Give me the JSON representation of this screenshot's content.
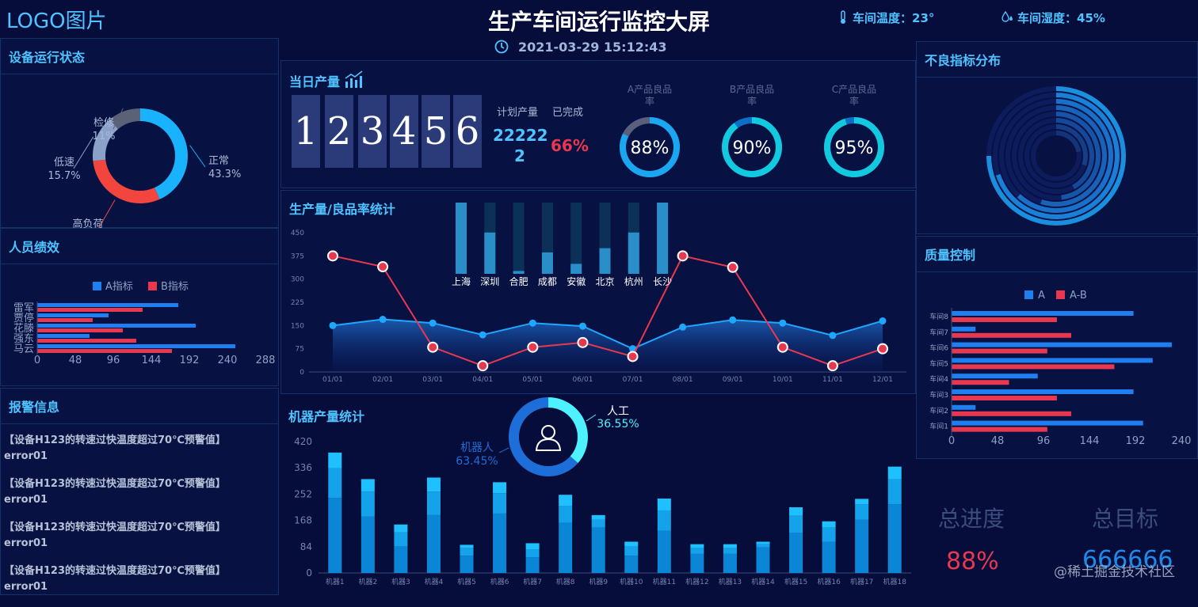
{
  "header": {
    "logo": "LOGO图片",
    "title": "生产车间运行监控大屏",
    "datetime": "2021-03-29 15:12:43",
    "temperature": "车间温度：23°",
    "humidity": "车间湿度：45%"
  },
  "panels": {
    "device_status": "设备运行状态",
    "staff": "人员绩效",
    "alarm": "报警信息",
    "daily_output": "当日产量",
    "output_yield": "生产量/良品率统计",
    "machine_output": "机器产量统计",
    "defect": "不良指标分布",
    "quality": "质量控制"
  },
  "device_status": {
    "slices": [
      {
        "name": "正常",
        "value": 43.3,
        "label": "43.3%",
        "color": "#19b2ff"
      },
      {
        "name": "高负荷",
        "value": 30,
        "label": "30%",
        "color": "#f2453d"
      },
      {
        "name": "低速",
        "value": 15.7,
        "label": "15.7%",
        "color": "#8aa2c8"
      },
      {
        "name": "检修",
        "value": 11,
        "label": "11%",
        "color": "#5b6278"
      }
    ]
  },
  "daily": {
    "digits": [
      "1",
      "2",
      "3",
      "4",
      "5",
      "6"
    ],
    "plan_label": "计划产量",
    "plan_value_line1": "22222",
    "plan_value_line2": "2",
    "done_label": "已完成",
    "done_value": "66%",
    "rates": [
      {
        "label_line1": "A产品良品",
        "label_line2": "率",
        "value": 88,
        "text": "88%"
      },
      {
        "label_line1": "B产品良品",
        "label_line2": "率",
        "value": 90,
        "text": "90%"
      },
      {
        "label_line1": "C产品良品",
        "label_line2": "率",
        "value": 95,
        "text": "95%"
      }
    ]
  },
  "staff_chart": {
    "legend": [
      "A指标",
      "B指标"
    ],
    "names": [
      "雷军",
      "贾停",
      "花滕",
      "强东",
      "马云"
    ],
    "a": [
      178,
      90,
      200,
      66,
      250
    ],
    "b": [
      133,
      70,
      108,
      125,
      170
    ],
    "ticks": [
      "0",
      "48",
      "96",
      "144",
      "192",
      "240",
      "288"
    ],
    "max": 288,
    "colors": {
      "a": "#1f7ff0",
      "b": "#e8384f"
    }
  },
  "alarms": [
    {
      "text": "【设备H123的转速过快温度超过70℃预警值】",
      "code": "error01"
    },
    {
      "text": "【设备H123的转速过快温度超过70℃预警值】",
      "code": "error01"
    },
    {
      "text": "【设备H123的转速过快温度超过70℃预警值】",
      "code": "error01"
    },
    {
      "text": "【设备H123的转速过快温度超过70℃预警值】",
      "code": "error01"
    }
  ],
  "chart_data": [
    {
      "type": "line",
      "title": "生产量/良品率统计",
      "x": [
        "01/01",
        "02/01",
        "03/01",
        "04/01",
        "05/01",
        "06/01",
        "07/01",
        "08/01",
        "09/01",
        "10/01",
        "11/01",
        "12/01"
      ],
      "yticks": [
        "0",
        "75",
        "150",
        "225",
        "300",
        "375",
        "450"
      ],
      "ylim": [
        0,
        450
      ],
      "series": [
        {
          "values": [
            150,
            170,
            158,
            120,
            158,
            148,
            75,
            145,
            168,
            158,
            118,
            165
          ],
          "color": "#1ea7ff"
        },
        {
          "values": [
            375,
            340,
            80,
            20,
            80,
            95,
            50,
            375,
            338,
            80,
            20,
            75
          ],
          "color": "#e8384f"
        }
      ]
    },
    {
      "type": "bar",
      "categories": [
        "上海",
        "深圳",
        "合肥",
        "成都",
        "安徽",
        "北京",
        "杭州",
        "长沙"
      ],
      "values": [
        100,
        58,
        4,
        30,
        14,
        36,
        58,
        100
      ],
      "ylim": [
        0,
        100
      ]
    },
    {
      "type": "bar",
      "title": "机器产量统计",
      "categories": [
        "机器1",
        "机器2",
        "机器3",
        "机器4",
        "机器5",
        "机器6",
        "机器7",
        "机器8",
        "机器9",
        "机器10",
        "机器11",
        "机器12",
        "机器13",
        "机器14",
        "机器15",
        "机器16",
        "机器17",
        "机器18"
      ],
      "yticks": [
        "0",
        "84",
        "168",
        "252",
        "336",
        "420"
      ],
      "ylim": [
        0,
        420
      ],
      "series": [
        {
          "values": [
            240,
            180,
            85,
            185,
            55,
            190,
            50,
            160,
            145,
            55,
            135,
            62,
            62,
            82,
            128,
            100,
            170,
            220
          ]
        },
        {
          "values": [
            95,
            80,
            45,
            75,
            25,
            65,
            25,
            55,
            25,
            30,
            65,
            18,
            18,
            10,
            55,
            45,
            50,
            80
          ]
        },
        {
          "values": [
            50,
            40,
            25,
            45,
            10,
            35,
            20,
            35,
            15,
            15,
            38,
            12,
            12,
            8,
            27,
            20,
            17,
            40
          ]
        }
      ]
    },
    {
      "type": "pie",
      "slices": [
        {
          "name": "人工",
          "value": 36.55,
          "label": "36.55%",
          "color": "#4df1ff"
        },
        {
          "name": "机器人",
          "value": 63.45,
          "label": "63.45%",
          "color": "#1d6ed8"
        }
      ]
    },
    {
      "type": "bar",
      "title": "质量控制",
      "legend": [
        "A",
        "A-B"
      ],
      "categories": [
        "车间8",
        "车间7",
        "车间6",
        "车间5",
        "车间4",
        "车间3",
        "车间2",
        "车间1"
      ],
      "series": [
        {
          "name": "A",
          "values": [
            190,
            25,
            230,
            210,
            90,
            190,
            25,
            200
          ],
          "color": "#1f7ff0"
        },
        {
          "name": "A-B",
          "values": [
            110,
            125,
            100,
            170,
            60,
            110,
            125,
            100
          ],
          "color": "#e8384f"
        }
      ],
      "xticks": [
        "0",
        "48",
        "96",
        "144",
        "192",
        "240"
      ],
      "xlim": [
        0,
        240
      ]
    }
  ],
  "defect_rings": [
    0.75,
    0.7,
    0.62,
    0.55,
    0.48,
    0.42,
    0.3,
    0.22
  ],
  "totals": {
    "progress_label": "总进度",
    "progress_value": "88%",
    "target_label": "总目标",
    "target_value": "666666"
  },
  "watermark": "@稀土掘金技术社区",
  "colors": {
    "accent": "#4fc3ff",
    "danger": "#e8384f",
    "bg": "#070d3a"
  }
}
